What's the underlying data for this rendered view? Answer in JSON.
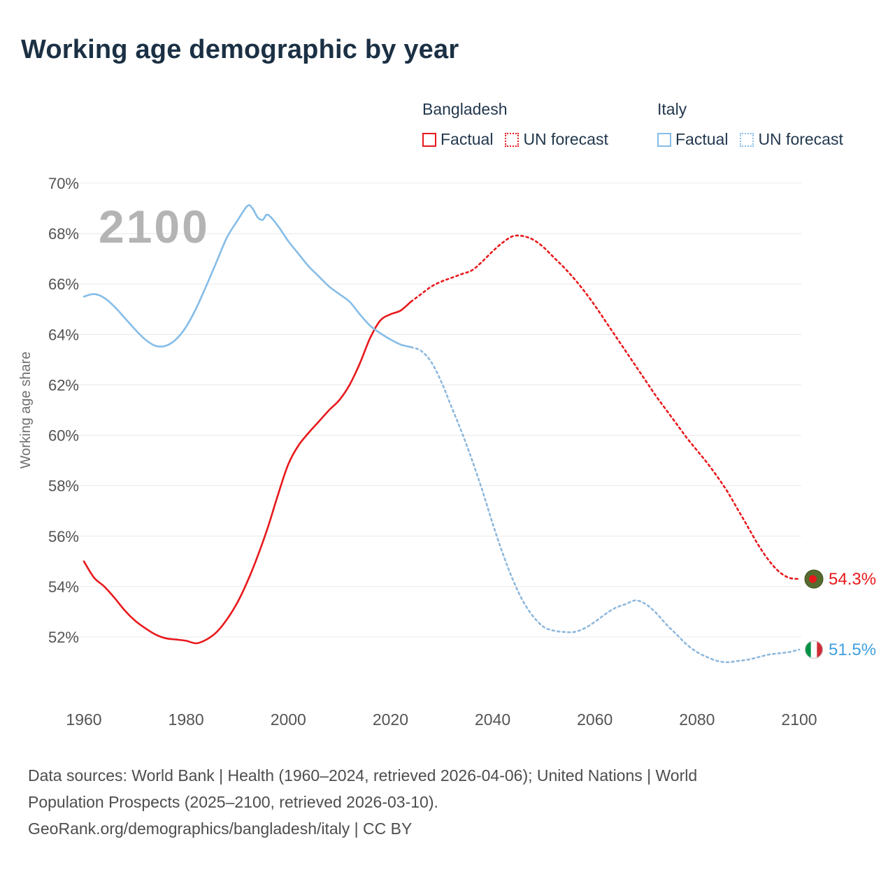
{
  "page": {
    "title": "Working age demographic by year",
    "watermark": "2100"
  },
  "legend": {
    "groups": [
      {
        "name": "Bangladesh",
        "color": "#e8191c",
        "items": [
          {
            "label": "Factual",
            "style": "solid"
          },
          {
            "label": "UN forecast",
            "style": "dotted"
          }
        ]
      },
      {
        "name": "Italy",
        "color": "#85bde8",
        "items": [
          {
            "label": "Factual",
            "style": "solid"
          },
          {
            "label": "UN forecast",
            "style": "dotted"
          }
        ]
      }
    ]
  },
  "footer": {
    "lines": [
      "Data sources: World Bank | Health (1960–2024, retrieved 2026-04-06); United Nations | World",
      "Population Prospects (2025–2100, retrieved 2026-03-10).",
      "GeoRank.org/demographics/bangladesh/italy | CC BY"
    ]
  },
  "chart_data": {
    "type": "line",
    "title": "Working age demographic by year",
    "ylabel": "Working age share",
    "xlabel": "",
    "xlim": [
      1960,
      2100
    ],
    "ylim": [
      52,
      70
    ],
    "xticks": [
      1960,
      1980,
      2000,
      2020,
      2040,
      2060,
      2080,
      2100
    ],
    "yticks": [
      52,
      54,
      56,
      58,
      60,
      62,
      64,
      66,
      68,
      70
    ],
    "ytick_labels": [
      "52%",
      "54%",
      "56%",
      "58%",
      "60%",
      "62%",
      "64%",
      "66%",
      "68%",
      "70%"
    ],
    "grid": true,
    "legend_position": "top-right",
    "series": [
      {
        "name": "Bangladesh Factual",
        "color": "#e8191c",
        "style": "solid",
        "points": [
          [
            1960,
            55.0
          ],
          [
            1962,
            54.35
          ],
          [
            1964,
            54.0
          ],
          [
            1966,
            53.55
          ],
          [
            1968,
            53.05
          ],
          [
            1970,
            52.65
          ],
          [
            1972,
            52.35
          ],
          [
            1974,
            52.1
          ],
          [
            1976,
            51.95
          ],
          [
            1978,
            51.9
          ],
          [
            1980,
            51.85
          ],
          [
            1982,
            51.75
          ],
          [
            1984,
            51.9
          ],
          [
            1986,
            52.2
          ],
          [
            1988,
            52.7
          ],
          [
            1990,
            53.35
          ],
          [
            1992,
            54.2
          ],
          [
            1994,
            55.2
          ],
          [
            1996,
            56.35
          ],
          [
            1998,
            57.65
          ],
          [
            2000,
            58.85
          ],
          [
            2002,
            59.6
          ],
          [
            2004,
            60.1
          ],
          [
            2006,
            60.55
          ],
          [
            2008,
            61.0
          ],
          [
            2010,
            61.4
          ],
          [
            2012,
            62.0
          ],
          [
            2014,
            62.85
          ],
          [
            2016,
            63.85
          ],
          [
            2018,
            64.55
          ],
          [
            2020,
            64.8
          ],
          [
            2022,
            64.95
          ],
          [
            2024,
            65.3
          ]
        ]
      },
      {
        "name": "Bangladesh UN forecast",
        "color": "#e8191c",
        "style": "dotted",
        "points": [
          [
            2024,
            65.3
          ],
          [
            2026,
            65.6
          ],
          [
            2028,
            65.9
          ],
          [
            2030,
            66.1
          ],
          [
            2032,
            66.25
          ],
          [
            2034,
            66.4
          ],
          [
            2036,
            66.55
          ],
          [
            2038,
            66.9
          ],
          [
            2040,
            67.3
          ],
          [
            2042,
            67.65
          ],
          [
            2044,
            67.9
          ],
          [
            2046,
            67.9
          ],
          [
            2048,
            67.75
          ],
          [
            2050,
            67.45
          ],
          [
            2052,
            67.05
          ],
          [
            2054,
            66.65
          ],
          [
            2056,
            66.2
          ],
          [
            2058,
            65.7
          ],
          [
            2060,
            65.15
          ],
          [
            2062,
            64.55
          ],
          [
            2064,
            63.95
          ],
          [
            2066,
            63.35
          ],
          [
            2068,
            62.75
          ],
          [
            2070,
            62.15
          ],
          [
            2072,
            61.55
          ],
          [
            2074,
            61.0
          ],
          [
            2076,
            60.45
          ],
          [
            2078,
            59.9
          ],
          [
            2080,
            59.4
          ],
          [
            2082,
            58.9
          ],
          [
            2084,
            58.35
          ],
          [
            2086,
            57.75
          ],
          [
            2088,
            57.05
          ],
          [
            2090,
            56.35
          ],
          [
            2092,
            55.65
          ],
          [
            2094,
            55.05
          ],
          [
            2096,
            54.6
          ],
          [
            2098,
            54.35
          ],
          [
            2100,
            54.3
          ]
        ]
      },
      {
        "name": "Italy Factual",
        "color": "#85bde8",
        "style": "solid",
        "points": [
          [
            1960,
            65.5
          ],
          [
            1962,
            65.6
          ],
          [
            1964,
            65.45
          ],
          [
            1966,
            65.1
          ],
          [
            1968,
            64.65
          ],
          [
            1970,
            64.2
          ],
          [
            1972,
            63.8
          ],
          [
            1974,
            63.55
          ],
          [
            1976,
            63.55
          ],
          [
            1978,
            63.8
          ],
          [
            1980,
            64.3
          ],
          [
            1982,
            65.05
          ],
          [
            1984,
            65.95
          ],
          [
            1986,
            66.9
          ],
          [
            1988,
            67.85
          ],
          [
            1990,
            68.5
          ],
          [
            1992,
            69.1
          ],
          [
            1993,
            69.0
          ],
          [
            1994,
            68.65
          ],
          [
            1995,
            68.55
          ],
          [
            1996,
            68.75
          ],
          [
            1998,
            68.3
          ],
          [
            2000,
            67.7
          ],
          [
            2002,
            67.2
          ],
          [
            2004,
            66.7
          ],
          [
            2006,
            66.3
          ],
          [
            2008,
            65.9
          ],
          [
            2010,
            65.6
          ],
          [
            2012,
            65.3
          ],
          [
            2014,
            64.8
          ],
          [
            2016,
            64.35
          ],
          [
            2018,
            64.05
          ],
          [
            2020,
            63.8
          ],
          [
            2022,
            63.6
          ],
          [
            2024,
            63.5
          ]
        ]
      },
      {
        "name": "Italy UN forecast",
        "color": "#8fb8dc",
        "style": "dotted",
        "points": [
          [
            2024,
            63.5
          ],
          [
            2026,
            63.35
          ],
          [
            2028,
            62.9
          ],
          [
            2030,
            62.1
          ],
          [
            2032,
            61.1
          ],
          [
            2034,
            60.1
          ],
          [
            2036,
            59.0
          ],
          [
            2038,
            57.8
          ],
          [
            2040,
            56.5
          ],
          [
            2042,
            55.3
          ],
          [
            2044,
            54.25
          ],
          [
            2046,
            53.4
          ],
          [
            2048,
            52.8
          ],
          [
            2050,
            52.4
          ],
          [
            2052,
            52.25
          ],
          [
            2054,
            52.2
          ],
          [
            2056,
            52.2
          ],
          [
            2058,
            52.35
          ],
          [
            2060,
            52.6
          ],
          [
            2062,
            52.9
          ],
          [
            2064,
            53.15
          ],
          [
            2066,
            53.3
          ],
          [
            2068,
            53.45
          ],
          [
            2070,
            53.3
          ],
          [
            2072,
            52.95
          ],
          [
            2074,
            52.5
          ],
          [
            2076,
            52.1
          ],
          [
            2078,
            51.7
          ],
          [
            2080,
            51.4
          ],
          [
            2082,
            51.2
          ],
          [
            2084,
            51.05
          ],
          [
            2086,
            51.0
          ],
          [
            2088,
            51.05
          ],
          [
            2090,
            51.1
          ],
          [
            2092,
            51.2
          ],
          [
            2094,
            51.3
          ],
          [
            2096,
            51.35
          ],
          [
            2098,
            51.4
          ],
          [
            2100,
            51.5
          ]
        ]
      }
    ],
    "end_markers": [
      {
        "series": "Bangladesh",
        "year": 2100,
        "value": 54.3,
        "label": "54.3%",
        "label_color": "#e8191c",
        "flag": "bangladesh",
        "flag_colors": {
          "field": "#556b2f",
          "disc": "#e8191c"
        }
      },
      {
        "series": "Italy",
        "year": 2100,
        "value": 51.5,
        "label": "51.5%",
        "label_color": "#3f9fdf",
        "flag": "italy",
        "flag_colors": {
          "left": "#009246",
          "mid": "#ffffff",
          "right": "#ce2b37"
        }
      }
    ]
  }
}
